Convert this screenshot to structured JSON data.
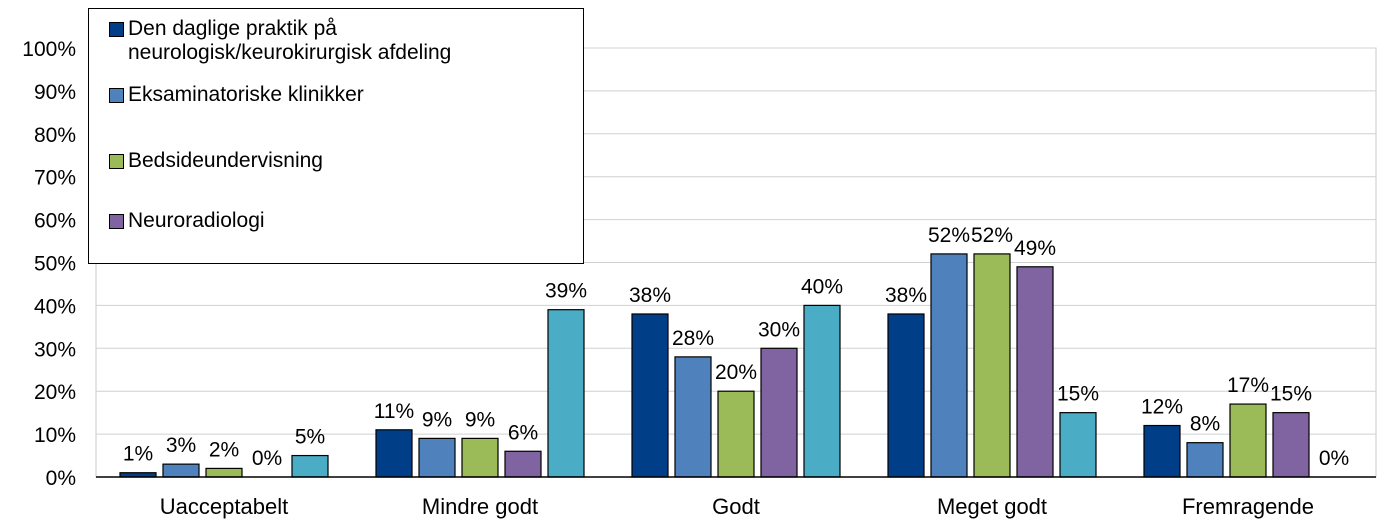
{
  "chart_data": {
    "type": "bar",
    "categories": [
      "Uacceptabelt",
      "Mindre godt",
      "Godt",
      "Meget godt",
      "Fremragende"
    ],
    "series": [
      {
        "name": "Den daglige praktik på neurologisk/keurokirurgisk afdeling",
        "color": "#003f87",
        "values": [
          1,
          11,
          38,
          38,
          12
        ],
        "labels": [
          "1%",
          "11%",
          "38%",
          "38%",
          "12%"
        ]
      },
      {
        "name": "Eksaminatoriske klinikker",
        "color": "#4f81bd",
        "values": [
          3,
          9,
          28,
          52,
          8
        ],
        "labels": [
          "3%",
          "9%",
          "28%",
          "52%",
          "8%"
        ]
      },
      {
        "name": "Bedsideundervisning",
        "color": "#9bbb59",
        "values": [
          2,
          9,
          20,
          52,
          17
        ],
        "labels": [
          "2%",
          "9%",
          "20%",
          "52%",
          "17%"
        ]
      },
      {
        "name": "Neuroradiologi",
        "color": "#8064a2",
        "values": [
          0,
          6,
          30,
          49,
          15
        ],
        "labels": [
          "0%",
          "6%",
          "30%",
          "49%",
          "15%"
        ]
      },
      {
        "name": "",
        "color": "#4bacc6",
        "values": [
          5,
          39,
          40,
          15,
          0
        ],
        "labels": [
          "5%",
          "39%",
          "40%",
          "15%",
          "0%"
        ]
      }
    ],
    "yticks": [
      "0%",
      "10%",
      "20%",
      "30%",
      "40%",
      "50%",
      "60%",
      "70%",
      "80%",
      "90%",
      "100%"
    ],
    "ylim": [
      0,
      100
    ],
    "grid": true,
    "legend_position": "top-left"
  }
}
